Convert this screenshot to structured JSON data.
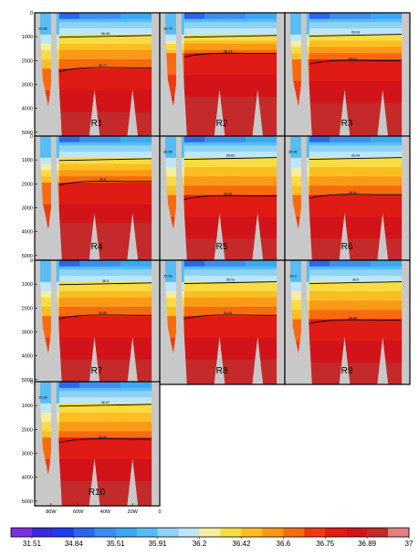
{
  "chart_data": {
    "type": "heatmap",
    "description_units": "salinity section; y = depth, x = longitude",
    "colors": {
      "land": "#c8c8c8",
      "grid": "#d6d6d6",
      "contour": "#000000",
      "scale": [
        "#7b2fe0",
        "#3a2ad8",
        "#1f3cf0",
        "#2f64ec",
        "#3f8cf0",
        "#3aa8f2",
        "#58bcf2",
        "#8ed2f4",
        "#bde6f7",
        "#f7ee9e",
        "#f9dc43",
        "#fbbf24",
        "#fb9a16",
        "#f76b10",
        "#ee3a12",
        "#e01a14",
        "#d2141a",
        "#c42a2a",
        "#e07f7f"
      ]
    },
    "colorbar": {
      "labels": [
        "31.51",
        "34.84",
        "35.51",
        "35.91",
        "36.2",
        "36.42",
        "36.6",
        "36.75",
        "36.89",
        "37"
      ]
    },
    "yaxis": {
      "ticks": [
        0,
        1000,
        2000,
        3000,
        4000,
        5000
      ],
      "ylim": [
        0,
        5200
      ]
    },
    "xaxis": {
      "ticks": [
        "80W",
        "60W",
        "40W",
        "20W",
        "0"
      ],
      "tick_values": [
        -80,
        -60,
        -40,
        -20,
        0
      ],
      "xlim": [
        -92,
        0
      ]
    },
    "panels": [
      {
        "label": "R1",
        "contour_low": 2300,
        "contour_low_label": "36.77",
        "contour_high": 950,
        "contour_high_label": "36.49",
        "strait_label": "35.66"
      },
      {
        "label": "R2",
        "contour_low": 1700,
        "contour_low_label": "36.73",
        "contour_high": 950,
        "contour_high_label": "",
        "strait_label": "36.74"
      },
      {
        "label": "R3",
        "contour_low": 2000,
        "contour_low_label": "36.67",
        "contour_high": 900,
        "contour_high_label": "36.93",
        "strait_label": ""
      },
      {
        "label": "R4",
        "contour_low": 1900,
        "contour_low_label": "36.8",
        "contour_high": 950,
        "contour_high_label": "",
        "strait_label": ""
      },
      {
        "label": "R5",
        "contour_low": 2500,
        "contour_low_label": "36.89",
        "contour_high": 900,
        "contour_high_label": "36.62",
        "strait_label": "35.65"
      },
      {
        "label": "R6",
        "contour_low": 2450,
        "contour_low_label": "36.84",
        "contour_high": 900,
        "contour_high_label": "36.99",
        "strait_label": "35.66"
      },
      {
        "label": "R7",
        "contour_low": 2300,
        "contour_low_label": "36.86",
        "contour_high": 950,
        "contour_high_label": "36.5",
        "strait_label": ""
      },
      {
        "label": "R8",
        "contour_low": 2300,
        "contour_low_label": "36.85",
        "contour_high": 900,
        "contour_high_label": "36.51",
        "strait_label": "35.63"
      },
      {
        "label": "R9",
        "contour_low": 2500,
        "contour_low_label": "36.86",
        "contour_high": 900,
        "contour_high_label": "36.5",
        "strait_label": "35.3"
      },
      {
        "label": "R10",
        "contour_low": 2400,
        "contour_low_label": "36.94",
        "contour_high": 950,
        "contour_high_label": "36.97",
        "strait_label": "35.69"
      }
    ]
  }
}
